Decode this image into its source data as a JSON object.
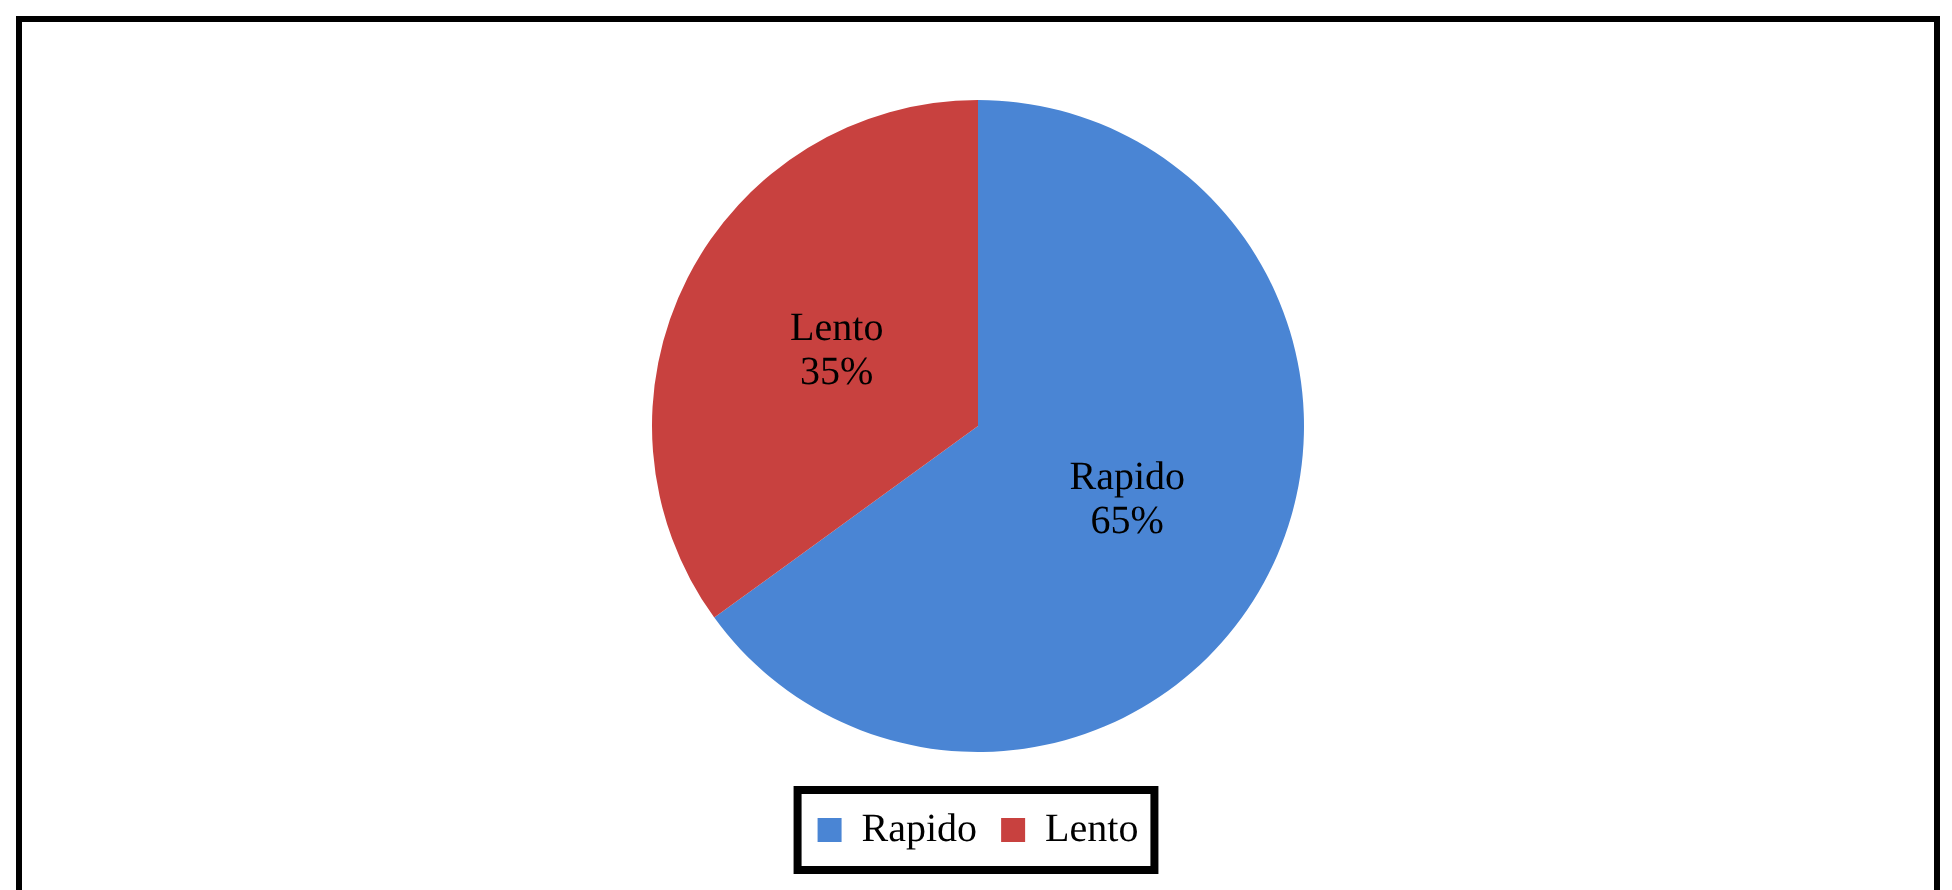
{
  "chart_data": {
    "type": "pie",
    "categories": [
      "Rapido",
      "Lento"
    ],
    "values": [
      65,
      35
    ],
    "colors": [
      "#4a85d4",
      "#c8413f"
    ],
    "value_labels": [
      "65%",
      "35%"
    ],
    "legend": "bottom"
  }
}
